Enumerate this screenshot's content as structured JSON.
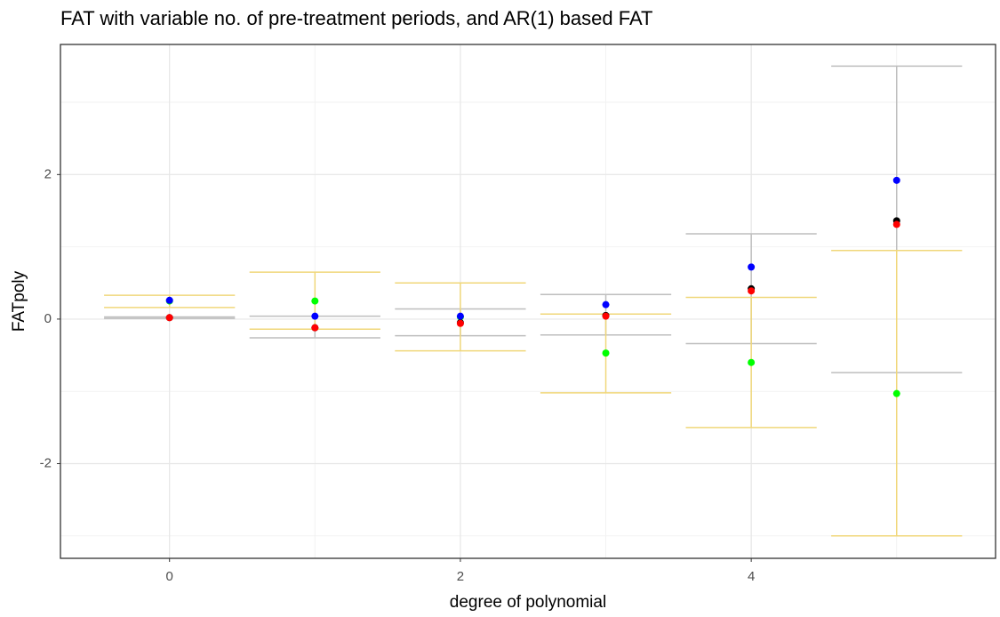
{
  "chart_data": {
    "type": "errorbar",
    "title": "FAT with variable no. of pre-treatment periods, and AR(1) based FAT",
    "x_label": "degree of polynomial",
    "y_label": "FATpoly",
    "x": [
      0,
      1,
      2,
      3,
      4,
      5
    ],
    "xlim": [
      -0.75,
      5.68
    ],
    "ylim": [
      -3.31,
      3.8
    ],
    "xticks": [
      0,
      2,
      4
    ],
    "yticks": [
      -2,
      0,
      2
    ],
    "x_minor_ticks": [
      1,
      3,
      5
    ],
    "y_minor_ticks": [
      -3,
      -1,
      1,
      3
    ],
    "grid": true,
    "errorbar_halfwidth": 0.45,
    "errorbars": [
      {
        "color": "#bebebe",
        "lower": [
          0.01,
          -0.26,
          -0.23,
          -0.22,
          -0.34,
          -0.74
        ],
        "upper": [
          0.03,
          0.04,
          0.14,
          0.34,
          1.18,
          3.5
        ]
      },
      {
        "color": "#f0d77a",
        "lower": [
          0.16,
          -0.14,
          -0.44,
          -1.02,
          -1.5,
          -3.0
        ],
        "upper": [
          0.33,
          0.65,
          0.5,
          0.07,
          0.3,
          0.95
        ]
      }
    ],
    "series": [
      {
        "color": "#00ff00",
        "values": [
          0.25,
          0.25,
          0.03,
          -0.47,
          -0.6,
          -1.03
        ]
      },
      {
        "color": "#000000",
        "values": [
          0.02,
          -0.12,
          -0.05,
          0.05,
          0.42,
          1.36
        ]
      },
      {
        "color": "#0000ff",
        "values": [
          0.26,
          0.04,
          0.04,
          0.2,
          0.72,
          1.92
        ]
      },
      {
        "color": "#ff0000",
        "values": [
          0.02,
          -0.12,
          -0.06,
          0.04,
          0.39,
          1.31
        ]
      }
    ]
  }
}
